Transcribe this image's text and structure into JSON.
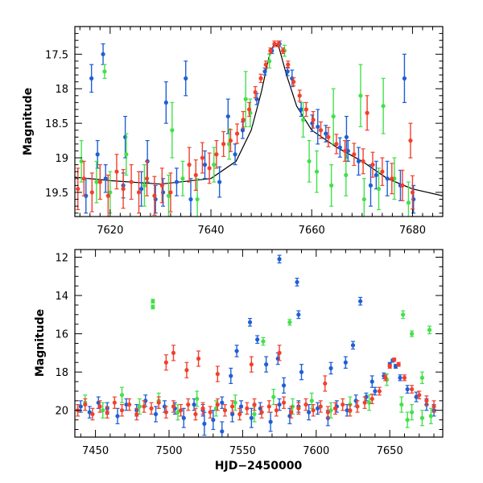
{
  "chart_data": [
    {
      "type": "scatter",
      "title": "",
      "xlabel": "",
      "ylabel": "Magnitude",
      "xlim": [
        7613,
        7686
      ],
      "ylim": [
        19.85,
        17.1
      ],
      "y_inverted": true,
      "grid": false,
      "x_ticks": [
        7620,
        7640,
        7660,
        7680
      ],
      "y_ticks": [
        17.5,
        18,
        18.5,
        19,
        19.5
      ],
      "x_minor_step": 2,
      "y_minor_step": 0.1,
      "colors": {
        "blue": "#1f5fd6",
        "green": "#43e04a",
        "red": "#f2402b",
        "model": "#000000"
      },
      "model_curve": {
        "name": "model",
        "x": [
          7613,
          7620,
          7630,
          7640,
          7645,
          7648,
          7650,
          7651.5,
          7652.5,
          7653.5,
          7655,
          7657,
          7660,
          7665,
          7670,
          7675,
          7680,
          7686
        ],
        "y": [
          19.28,
          19.33,
          19.38,
          19.3,
          19.05,
          18.6,
          18.05,
          17.55,
          17.35,
          17.4,
          17.8,
          18.25,
          18.6,
          18.85,
          19.05,
          19.3,
          19.45,
          19.55
        ]
      },
      "series": [
        {
          "color": "blue",
          "x": [
            7615.2,
            7617.5,
            7619.1,
            7622.6,
            7626.2,
            7629.0,
            7630.5,
            7633.2,
            7636.0,
            7638.8,
            7641.7,
            7644.8,
            7646.3,
            7649.1,
            7650.7,
            7652.1,
            7653.6,
            7655.2,
            7657.9,
            7660.1,
            7662.8,
            7665.6,
            7667.2,
            7669.3,
            7672.8,
            7675.0,
            7677.6,
            7680.2,
            7616.3,
            7618.6,
            7623.0,
            7627.4,
            7631.1,
            7635.0,
            7643.4,
            7656.1,
            7661.2,
            7666.9,
            7671.7,
            7678.4
          ],
          "y": [
            19.55,
            18.95,
            19.3,
            19.4,
            19.45,
            19.6,
            19.5,
            19.35,
            19.6,
            19.1,
            19.35,
            18.95,
            18.6,
            18.15,
            17.75,
            17.45,
            17.35,
            17.75,
            18.3,
            18.5,
            18.65,
            18.85,
            18.9,
            19.05,
            19.25,
            19.3,
            19.4,
            19.6,
            17.85,
            17.5,
            18.7,
            19.05,
            18.2,
            17.85,
            18.4,
            17.85,
            18.55,
            18.7,
            19.4,
            17.85
          ],
          "err": [
            0.25,
            0.2,
            0.2,
            0.18,
            0.25,
            0.2,
            0.2,
            0.2,
            0.3,
            0.2,
            0.22,
            0.15,
            0.12,
            0.08,
            0.05,
            0.04,
            0.04,
            0.06,
            0.1,
            0.12,
            0.12,
            0.14,
            0.15,
            0.2,
            0.2,
            0.25,
            0.22,
            0.2,
            0.2,
            0.15,
            0.3,
            0.3,
            0.3,
            0.25,
            0.25,
            0.12,
            0.25,
            0.3,
            0.3,
            0.35
          ]
        },
        {
          "color": "green",
          "x": [
            7614.3,
            7617.3,
            7620.0,
            7623.2,
            7626.8,
            7631.6,
            7634.4,
            7637.3,
            7640.6,
            7643.6,
            7647.8,
            7651.6,
            7654.6,
            7658.3,
            7661.0,
            7663.9,
            7666.8,
            7670.4,
            7673.3,
            7676.4,
            7679.2,
            7618.9,
            7632.3,
            7646.9,
            7659.5,
            7664.3,
            7669.7,
            7674.2
          ],
          "y": [
            19.05,
            19.35,
            19.5,
            18.95,
            19.4,
            19.55,
            19.3,
            19.6,
            19.1,
            18.8,
            18.35,
            17.6,
            17.45,
            18.45,
            19.2,
            19.4,
            19.25,
            19.6,
            19.45,
            19.3,
            19.65,
            17.75,
            18.6,
            18.15,
            19.05,
            18.4,
            18.1,
            18.25
          ],
          "err": [
            0.3,
            0.3,
            0.3,
            0.3,
            0.3,
            0.3,
            0.25,
            0.3,
            0.25,
            0.22,
            0.2,
            0.1,
            0.08,
            0.25,
            0.3,
            0.3,
            0.3,
            0.3,
            0.3,
            0.3,
            0.3,
            0.1,
            0.4,
            0.4,
            0.3,
            0.4,
            0.45,
            0.4
          ]
        },
        {
          "color": "red",
          "x": [
            7613.6,
            7614.8,
            7616.4,
            7618.0,
            7619.6,
            7621.3,
            7622.6,
            7624.2,
            7625.7,
            7627.3,
            7628.8,
            7630.3,
            7632.0,
            7635.7,
            7637.0,
            7638.3,
            7639.7,
            7641.1,
            7642.5,
            7643.9,
            7645.2,
            7646.4,
            7647.6,
            7648.8,
            7649.9,
            7650.9,
            7651.8,
            7652.6,
            7653.4,
            7654.3,
            7655.3,
            7656.4,
            7657.6,
            7658.9,
            7660.3,
            7661.8,
            7663.3,
            7664.9,
            7666.6,
            7668.4,
            7670.2,
            7672.1,
            7674.0,
            7675.9,
            7678.0,
            7680.0,
            7671.0,
            7679.6
          ],
          "y": [
            19.45,
            19.3,
            19.5,
            19.35,
            19.55,
            19.2,
            19.45,
            19.35,
            19.5,
            19.3,
            19.55,
            19.4,
            19.5,
            19.1,
            19.25,
            19.0,
            19.15,
            18.95,
            18.8,
            18.75,
            18.65,
            18.45,
            18.3,
            18.05,
            17.85,
            17.65,
            17.45,
            17.35,
            17.35,
            17.45,
            17.65,
            17.9,
            18.1,
            18.3,
            18.45,
            18.6,
            18.7,
            18.8,
            18.9,
            18.95,
            19.05,
            19.1,
            19.2,
            19.3,
            19.4,
            19.5,
            18.35,
            18.75
          ],
          "err": [
            0.3,
            0.25,
            0.28,
            0.25,
            0.3,
            0.25,
            0.28,
            0.25,
            0.3,
            0.25,
            0.28,
            0.25,
            0.28,
            0.25,
            0.22,
            0.22,
            0.22,
            0.2,
            0.18,
            0.16,
            0.14,
            0.12,
            0.1,
            0.08,
            0.06,
            0.05,
            0.04,
            0.04,
            0.04,
            0.04,
            0.05,
            0.06,
            0.08,
            0.1,
            0.12,
            0.12,
            0.14,
            0.14,
            0.15,
            0.16,
            0.18,
            0.18,
            0.2,
            0.22,
            0.22,
            0.24,
            0.25,
            0.25
          ]
        }
      ]
    },
    {
      "type": "scatter",
      "title": "",
      "xlabel": "HJD−2450000",
      "ylabel": "Magnitude",
      "xlim": [
        7436,
        7686
      ],
      "ylim": [
        21.4,
        11.6
      ],
      "y_inverted": true,
      "grid": false,
      "x_ticks": [
        7450,
        7500,
        7550,
        7600,
        7650
      ],
      "y_ticks": [
        12,
        14,
        16,
        18,
        20
      ],
      "x_minor_step": 10,
      "y_minor_step": 0.5,
      "colors": {
        "blue": "#1f5fd6",
        "green": "#43e04a",
        "red": "#f2402b"
      },
      "series": [
        {
          "color": "blue",
          "x": [
            7440,
            7446,
            7452,
            7458,
            7465,
            7471,
            7478,
            7484,
            7491,
            7497,
            7504,
            7510,
            7517,
            7523,
            7530,
            7536,
            7543,
            7549,
            7556,
            7562,
            7569,
            7575,
            7582,
            7588,
            7595,
            7601,
            7608,
            7614,
            7621,
            7627,
            7634,
            7640,
            7646,
            7650,
            7652,
            7654,
            7657,
            7662,
            7668,
            7675,
            7680,
            7555,
            7575,
            7587,
            7560,
            7588,
            7630,
            7620,
            7574,
            7546,
            7610,
            7524,
            7536,
            7542,
            7566,
            7578,
            7590,
            7625,
            7638
          ],
          "y": [
            19.8,
            20.1,
            19.6,
            19.9,
            20.3,
            19.7,
            20.0,
            19.5,
            20.2,
            19.8,
            19.9,
            20.4,
            19.7,
            20.0,
            20.5,
            19.6,
            20.2,
            19.8,
            20.4,
            19.9,
            20.6,
            19.7,
            20.3,
            19.8,
            20.1,
            19.9,
            20.4,
            19.8,
            20.0,
            19.5,
            19.3,
            19.0,
            18.2,
            17.6,
            17.4,
            17.7,
            18.3,
            18.9,
            19.3,
            19.7,
            20.0,
            15.4,
            12.1,
            13.3,
            16.3,
            15.0,
            14.3,
            17.5,
            17.3,
            16.9,
            17.8,
            20.7,
            21.1,
            18.2,
            17.6,
            18.7,
            18.0,
            16.6,
            18.5
          ],
          "err": [
            0.3,
            0.3,
            0.3,
            0.3,
            0.4,
            0.3,
            0.3,
            0.3,
            0.4,
            0.3,
            0.3,
            0.5,
            0.3,
            0.3,
            0.5,
            0.3,
            0.4,
            0.3,
            0.5,
            0.3,
            0.5,
            0.3,
            0.4,
            0.3,
            0.4,
            0.3,
            0.4,
            0.3,
            0.3,
            0.3,
            0.2,
            0.2,
            0.15,
            0.1,
            0.08,
            0.1,
            0.15,
            0.2,
            0.25,
            0.3,
            0.3,
            0.2,
            0.2,
            0.2,
            0.2,
            0.2,
            0.2,
            0.3,
            0.3,
            0.3,
            0.3,
            0.6,
            0.5,
            0.4,
            0.4,
            0.4,
            0.4,
            0.2,
            0.3
          ]
        },
        {
          "color": "green",
          "x": [
            7443,
            7455,
            7468,
            7480,
            7493,
            7506,
            7519,
            7532,
            7545,
            7558,
            7571,
            7584,
            7597,
            7610,
            7623,
            7636,
            7648,
            7658,
            7665,
            7672,
            7678,
            7489,
            7489,
            7564,
            7582,
            7659,
            7665,
            7677,
            7672,
            7662
          ],
          "y": [
            19.6,
            20.0,
            19.2,
            19.8,
            19.5,
            20.1,
            19.4,
            19.9,
            19.6,
            20.2,
            19.3,
            19.8,
            19.5,
            20.0,
            19.7,
            19.6,
            18.4,
            19.7,
            20.1,
            20.4,
            20.3,
            14.3,
            14.6,
            16.4,
            15.4,
            15.0,
            16.0,
            15.8,
            18.3,
            20.5
          ],
          "err": [
            0.4,
            0.4,
            0.4,
            0.4,
            0.4,
            0.4,
            0.4,
            0.4,
            0.4,
            0.4,
            0.4,
            0.4,
            0.4,
            0.4,
            0.4,
            0.4,
            0.3,
            0.4,
            0.4,
            0.4,
            0.4,
            0.1,
            0.1,
            0.2,
            0.15,
            0.2,
            0.15,
            0.2,
            0.3,
            0.4
          ]
        },
        {
          "color": "red",
          "x": [
            7438,
            7443,
            7448,
            7453,
            7458,
            7463,
            7468,
            7473,
            7478,
            7483,
            7488,
            7493,
            7498,
            7503,
            7508,
            7513,
            7518,
            7523,
            7528,
            7533,
            7538,
            7543,
            7548,
            7553,
            7558,
            7563,
            7568,
            7573,
            7578,
            7583,
            7588,
            7593,
            7598,
            7603,
            7608,
            7613,
            7618,
            7623,
            7628,
            7633,
            7638,
            7643,
            7647,
            7650,
            7653,
            7656,
            7660,
            7665,
            7670,
            7675,
            7680,
            7498,
            7503,
            7512,
            7520,
            7533,
            7556,
            7575,
            7606
          ],
          "y": [
            20.0,
            19.7,
            20.2,
            19.8,
            20.1,
            19.6,
            20.0,
            19.7,
            20.2,
            19.8,
            19.9,
            19.6,
            20.1,
            19.8,
            20.0,
            19.7,
            20.2,
            19.9,
            20.1,
            19.7,
            20.0,
            19.8,
            20.2,
            19.9,
            19.7,
            20.1,
            19.8,
            20.0,
            19.6,
            20.1,
            19.9,
            19.7,
            20.0,
            19.8,
            20.1,
            19.9,
            19.7,
            20.0,
            19.8,
            19.6,
            19.4,
            19.0,
            18.3,
            17.7,
            17.35,
            17.6,
            18.3,
            18.9,
            19.2,
            19.5,
            19.8,
            17.5,
            17.0,
            17.9,
            17.3,
            18.1,
            17.6,
            17.0,
            18.6
          ],
          "err": [
            0.3,
            0.3,
            0.3,
            0.3,
            0.3,
            0.3,
            0.3,
            0.3,
            0.3,
            0.3,
            0.3,
            0.3,
            0.3,
            0.3,
            0.3,
            0.3,
            0.3,
            0.3,
            0.3,
            0.3,
            0.3,
            0.3,
            0.3,
            0.3,
            0.3,
            0.3,
            0.3,
            0.3,
            0.3,
            0.3,
            0.3,
            0.3,
            0.3,
            0.3,
            0.3,
            0.3,
            0.3,
            0.3,
            0.3,
            0.3,
            0.25,
            0.2,
            0.15,
            0.1,
            0.08,
            0.1,
            0.15,
            0.2,
            0.2,
            0.25,
            0.3,
            0.4,
            0.4,
            0.4,
            0.4,
            0.4,
            0.4,
            0.4,
            0.4
          ]
        }
      ]
    }
  ]
}
